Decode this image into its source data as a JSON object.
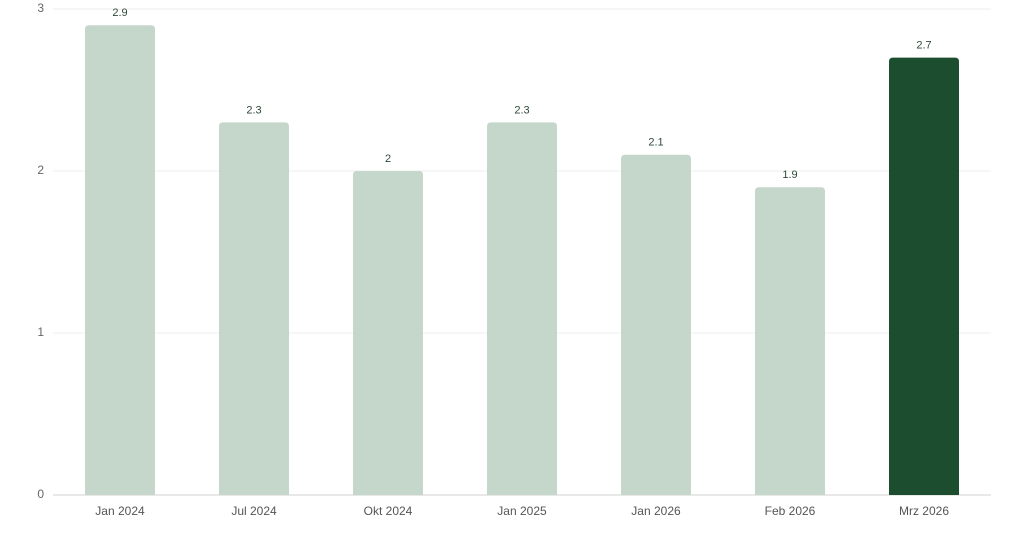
{
  "chart_data": {
    "type": "bar",
    "categories": [
      "Jan 2024",
      "Jul 2024",
      "Okt 2024",
      "Jan 2025",
      "Jan 2026",
      "Feb 2026",
      "Mrz 2026"
    ],
    "values": [
      2.9,
      2.3,
      2,
      2.3,
      2.1,
      1.9,
      2.7
    ],
    "colors": [
      "#c5d6ca",
      "#c5d6ca",
      "#c5d6ca",
      "#c5d6ca",
      "#c5d6ca",
      "#c5d6ca",
      "#1b4d2e"
    ],
    "ylim": [
      0,
      3
    ],
    "yticks": [
      0,
      1,
      2,
      3
    ],
    "grid": true
  }
}
